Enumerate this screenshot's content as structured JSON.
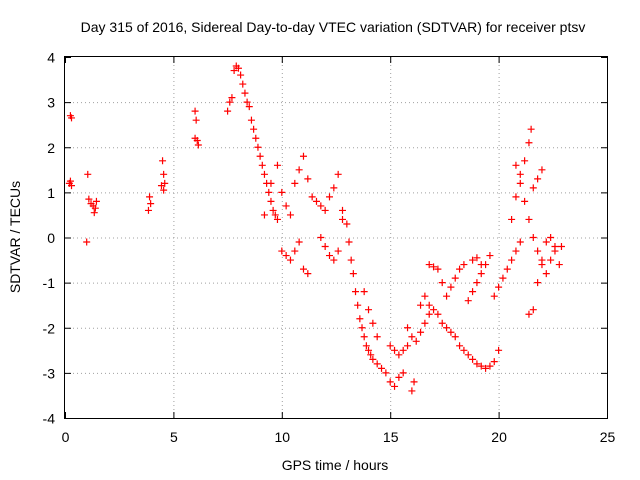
{
  "chart_data": {
    "type": "scatter",
    "title": "Day 315 of 2016, Sidereal Day-to-day VTEC variation (SDTVAR) for receiver ptsv",
    "xlabel": "GPS time / hours",
    "ylabel": "SDTVAR / TECUs",
    "xlim": [
      0,
      25
    ],
    "ylim": [
      -4,
      4
    ],
    "xticks": [
      0,
      5,
      10,
      15,
      20,
      25
    ],
    "yticks": [
      -4,
      -3,
      -2,
      -1,
      0,
      1,
      2,
      3,
      4
    ],
    "grid": true,
    "marker": "+",
    "color": "#ff0000",
    "series": [
      {
        "name": "SDTVAR",
        "points": [
          [
            0.2,
            1.2
          ],
          [
            0.3,
            1.15
          ],
          [
            0.25,
            1.25
          ],
          [
            0.3,
            2.65
          ],
          [
            0.25,
            2.7
          ],
          [
            1.0,
            -0.1
          ],
          [
            1.05,
            1.4
          ],
          [
            1.1,
            0.85
          ],
          [
            1.2,
            0.75
          ],
          [
            1.3,
            0.7
          ],
          [
            1.4,
            0.65
          ],
          [
            1.35,
            0.55
          ],
          [
            1.45,
            0.8
          ],
          [
            3.9,
            0.9
          ],
          [
            3.95,
            0.75
          ],
          [
            3.85,
            0.6
          ],
          [
            4.5,
            1.7
          ],
          [
            4.55,
            1.4
          ],
          [
            4.6,
            1.2
          ],
          [
            4.55,
            1.05
          ],
          [
            4.45,
            1.15
          ],
          [
            6.0,
            2.8
          ],
          [
            6.05,
            2.6
          ],
          [
            6.1,
            2.15
          ],
          [
            6.15,
            2.05
          ],
          [
            6.0,
            2.2
          ],
          [
            7.5,
            2.8
          ],
          [
            7.6,
            3.0
          ],
          [
            7.7,
            3.1
          ],
          [
            7.8,
            3.7
          ],
          [
            7.9,
            3.8
          ],
          [
            8.0,
            3.75
          ],
          [
            8.1,
            3.6
          ],
          [
            8.2,
            3.4
          ],
          [
            8.3,
            3.2
          ],
          [
            8.4,
            3.0
          ],
          [
            8.5,
            2.9
          ],
          [
            8.6,
            2.6
          ],
          [
            8.7,
            2.4
          ],
          [
            8.8,
            2.2
          ],
          [
            8.9,
            2.0
          ],
          [
            9.0,
            1.8
          ],
          [
            9.1,
            1.6
          ],
          [
            9.2,
            1.4
          ],
          [
            9.3,
            1.2
          ],
          [
            9.4,
            1.0
          ],
          [
            9.5,
            0.8
          ],
          [
            9.6,
            0.6
          ],
          [
            9.7,
            0.5
          ],
          [
            9.8,
            0.4
          ],
          [
            9.2,
            0.5
          ],
          [
            9.5,
            1.2
          ],
          [
            9.8,
            1.6
          ],
          [
            10.0,
            1.0
          ],
          [
            10.2,
            0.7
          ],
          [
            10.4,
            0.5
          ],
          [
            10.0,
            -0.3
          ],
          [
            10.2,
            -0.4
          ],
          [
            10.4,
            -0.5
          ],
          [
            10.6,
            -0.3
          ],
          [
            10.8,
            -0.1
          ],
          [
            11.0,
            -0.7
          ],
          [
            11.2,
            -0.8
          ],
          [
            10.6,
            1.2
          ],
          [
            10.8,
            1.5
          ],
          [
            11.0,
            1.8
          ],
          [
            11.2,
            1.3
          ],
          [
            11.4,
            0.9
          ],
          [
            11.6,
            0.8
          ],
          [
            11.8,
            0.7
          ],
          [
            12.0,
            0.6
          ],
          [
            12.2,
            0.9
          ],
          [
            12.4,
            1.1
          ],
          [
            12.6,
            1.4
          ],
          [
            12.8,
            0.4
          ],
          [
            11.8,
            0.0
          ],
          [
            12.0,
            -0.2
          ],
          [
            12.2,
            -0.4
          ],
          [
            12.4,
            -0.5
          ],
          [
            12.6,
            -0.3
          ],
          [
            12.8,
            0.6
          ],
          [
            13.0,
            0.3
          ],
          [
            13.1,
            -0.1
          ],
          [
            13.2,
            -0.5
          ],
          [
            13.3,
            -0.8
          ],
          [
            13.4,
            -1.2
          ],
          [
            13.5,
            -1.5
          ],
          [
            13.6,
            -1.8
          ],
          [
            13.7,
            -2.0
          ],
          [
            13.8,
            -2.2
          ],
          [
            13.9,
            -2.4
          ],
          [
            14.0,
            -2.5
          ],
          [
            14.1,
            -2.6
          ],
          [
            14.2,
            -2.7
          ],
          [
            13.8,
            -1.2
          ],
          [
            14.0,
            -1.6
          ],
          [
            14.2,
            -1.9
          ],
          [
            14.4,
            -2.2
          ],
          [
            14.4,
            -2.8
          ],
          [
            14.6,
            -2.9
          ],
          [
            14.8,
            -3.0
          ],
          [
            15.0,
            -3.2
          ],
          [
            15.2,
            -3.3
          ],
          [
            15.4,
            -3.1
          ],
          [
            15.6,
            -3.0
          ],
          [
            15.0,
            -2.4
          ],
          [
            15.2,
            -2.5
          ],
          [
            15.4,
            -2.6
          ],
          [
            15.6,
            -2.5
          ],
          [
            15.8,
            -2.4
          ],
          [
            16.0,
            -3.4
          ],
          [
            16.1,
            -3.2
          ],
          [
            15.8,
            -2.0
          ],
          [
            16.0,
            -2.2
          ],
          [
            16.2,
            -2.3
          ],
          [
            16.4,
            -2.1
          ],
          [
            16.6,
            -1.9
          ],
          [
            16.8,
            -1.7
          ],
          [
            16.4,
            -1.5
          ],
          [
            16.6,
            -1.3
          ],
          [
            16.8,
            -1.5
          ],
          [
            17.0,
            -1.6
          ],
          [
            17.2,
            -1.7
          ],
          [
            17.4,
            -1.9
          ],
          [
            16.8,
            -0.6
          ],
          [
            17.0,
            -0.65
          ],
          [
            17.2,
            -0.7
          ],
          [
            17.4,
            -1.0
          ],
          [
            17.6,
            -1.3
          ],
          [
            17.8,
            -1.1
          ],
          [
            18.0,
            -0.9
          ],
          [
            18.2,
            -0.7
          ],
          [
            18.4,
            -0.6
          ],
          [
            17.6,
            -2.0
          ],
          [
            17.8,
            -2.1
          ],
          [
            18.0,
            -2.2
          ],
          [
            18.2,
            -2.4
          ],
          [
            18.4,
            -2.5
          ],
          [
            18.6,
            -2.6
          ],
          [
            18.8,
            -2.7
          ],
          [
            19.0,
            -2.8
          ],
          [
            19.2,
            -2.85
          ],
          [
            19.4,
            -2.9
          ],
          [
            19.6,
            -2.85
          ],
          [
            19.8,
            -2.75
          ],
          [
            20.0,
            -2.5
          ],
          [
            18.6,
            -1.4
          ],
          [
            18.8,
            -1.2
          ],
          [
            19.0,
            -1.0
          ],
          [
            19.2,
            -0.8
          ],
          [
            19.4,
            -0.6
          ],
          [
            19.6,
            -0.4
          ],
          [
            18.8,
            -0.5
          ],
          [
            19.0,
            -0.45
          ],
          [
            19.2,
            -0.6
          ],
          [
            19.8,
            -1.3
          ],
          [
            20.0,
            -1.1
          ],
          [
            20.2,
            -0.9
          ],
          [
            20.4,
            -0.7
          ],
          [
            20.6,
            -0.5
          ],
          [
            20.8,
            -0.3
          ],
          [
            21.0,
            -0.1
          ],
          [
            20.6,
            0.4
          ],
          [
            20.8,
            0.9
          ],
          [
            21.0,
            1.4
          ],
          [
            21.2,
            1.7
          ],
          [
            21.4,
            2.1
          ],
          [
            21.5,
            2.4
          ],
          [
            20.8,
            1.6
          ],
          [
            21.0,
            1.2
          ],
          [
            21.2,
            0.8
          ],
          [
            21.4,
            0.4
          ],
          [
            21.6,
            0.0
          ],
          [
            21.8,
            -0.3
          ],
          [
            21.6,
            1.1
          ],
          [
            21.8,
            1.3
          ],
          [
            22.0,
            1.5
          ],
          [
            21.4,
            -1.7
          ],
          [
            21.6,
            -1.6
          ],
          [
            21.8,
            -1.0
          ],
          [
            22.0,
            -0.5
          ],
          [
            22.2,
            -0.1
          ],
          [
            22.4,
            0.0
          ],
          [
            22.6,
            -0.2
          ],
          [
            22.0,
            -0.6
          ],
          [
            22.2,
            -0.8
          ],
          [
            22.4,
            -0.5
          ],
          [
            22.6,
            -0.3
          ],
          [
            22.8,
            -0.6
          ],
          [
            22.9,
            -0.2
          ]
        ]
      }
    ]
  }
}
